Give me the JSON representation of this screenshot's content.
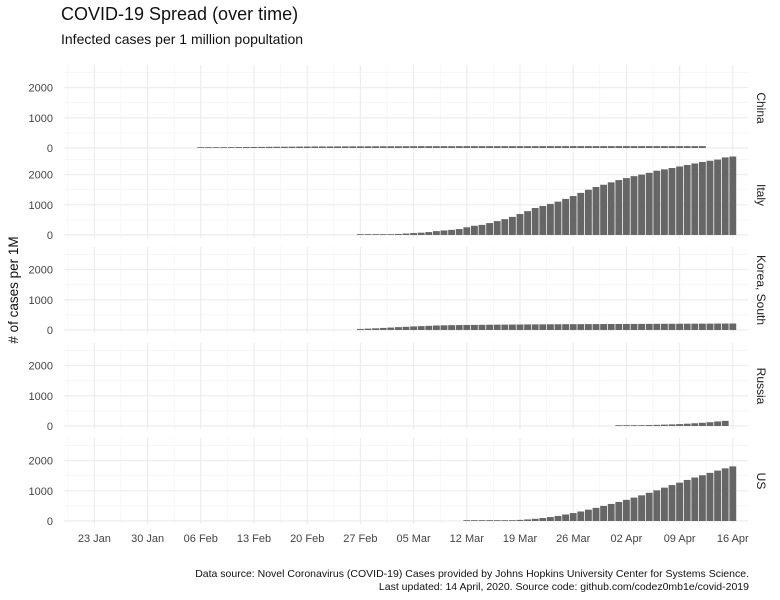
{
  "chart_data": {
    "type": "bar",
    "title": "COVID-19 Spread (over time)",
    "subtitle": "Infected cases per 1 million popultation",
    "ylabel": "# of cases per 1M",
    "xlabel": "",
    "caption": [
      "Data source: Novel Coronavirus (COVID-19) Cases provided by Johns Hopkins University Center for Systems Science.",
      "Last updated: 14 April, 2020. Source code: github.com/codez0mb1e/covid-2019"
    ],
    "x_ticks": [
      "23 Jan",
      "30 Jan",
      "06 Feb",
      "13 Feb",
      "20 Feb",
      "27 Feb",
      "05 Mar",
      "12 Mar",
      "19 Mar",
      "26 Mar",
      "02 Apr",
      "09 Apr",
      "16 Apr"
    ],
    "x_range": [
      "2020-01-19",
      "2020-04-18"
    ],
    "y_ticks": [
      0,
      1000,
      2000
    ],
    "ylim": [
      -100,
      2750
    ],
    "grid": true,
    "bar_color": "#666666",
    "series": [
      {
        "name": "China",
        "start_date": "2020-02-06",
        "values": [
          20,
          22,
          24,
          26,
          28,
          30,
          32,
          34,
          36,
          38,
          40,
          42,
          44,
          46,
          48,
          50,
          50,
          51,
          52,
          53,
          54,
          55,
          56,
          57,
          57,
          58,
          58,
          59,
          59,
          60,
          60,
          60,
          60,
          60,
          61,
          61,
          61,
          61,
          61,
          61,
          61,
          61,
          61,
          61,
          61,
          62,
          62,
          62,
          62,
          62,
          62,
          62,
          62,
          62,
          62,
          62,
          62,
          62,
          62,
          62,
          62,
          62,
          62,
          62,
          62,
          62,
          62
        ]
      },
      {
        "name": "Italy",
        "start_date": "2020-02-27",
        "values": [
          8,
          11,
          14,
          18,
          24,
          34,
          48,
          64,
          76,
          96,
          128,
          150,
          170,
          196,
          255,
          305,
          335,
          395,
          460,
          525,
          600,
          695,
          790,
          895,
          960,
          1030,
          1105,
          1195,
          1290,
          1395,
          1500,
          1590,
          1665,
          1745,
          1820,
          1885,
          1950,
          2000,
          2060,
          2130,
          2175,
          2220,
          2270,
          2320,
          2370,
          2420,
          2460,
          2500,
          2570,
          2600
        ]
      },
      {
        "name": "Korea, South",
        "start_date": "2020-02-27",
        "values": [
          35,
          45,
          55,
          68,
          80,
          95,
          105,
          118,
          128,
          138,
          148,
          155,
          160,
          163,
          166,
          168,
          171,
          174,
          176,
          178,
          180,
          182,
          184,
          186,
          187,
          189,
          190,
          192,
          193,
          194,
          195,
          196,
          197,
          198,
          199,
          200,
          201,
          202,
          203,
          204,
          205,
          206,
          207,
          208,
          209,
          210,
          211,
          212,
          213,
          214
        ]
      },
      {
        "name": "Russia",
        "start_date": "2020-04-01",
        "values": [
          15,
          18,
          22,
          26,
          31,
          37,
          45,
          53,
          62,
          75,
          90,
          105,
          125,
          150,
          170
        ]
      },
      {
        "name": "US",
        "start_date": "2020-03-12",
        "values": [
          4,
          6,
          8,
          10,
          14,
          19,
          25,
          36,
          52,
          72,
          98,
          130,
          165,
          215,
          262,
          315,
          375,
          435,
          500,
          565,
          630,
          700,
          775,
          850,
          935,
          1015,
          1105,
          1190,
          1270,
          1360,
          1440,
          1515,
          1595,
          1670,
          1745,
          1810
        ]
      }
    ]
  }
}
